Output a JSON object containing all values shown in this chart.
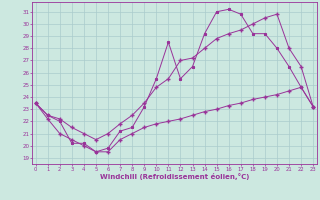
{
  "xlabel": "Windchill (Refroidissement éolien,°C)",
  "bg_color": "#cce8e0",
  "line_color": "#993399",
  "grid_color": "#aacccc",
  "x_ticks": [
    0,
    1,
    2,
    3,
    4,
    5,
    6,
    7,
    8,
    9,
    10,
    11,
    12,
    13,
    14,
    15,
    16,
    17,
    18,
    19,
    20,
    21,
    22,
    23
  ],
  "y_ticks": [
    19,
    20,
    21,
    22,
    23,
    24,
    25,
    26,
    27,
    28,
    29,
    30,
    31
  ],
  "xlim": [
    -0.3,
    23.3
  ],
  "ylim": [
    18.5,
    31.8
  ],
  "line1_x": [
    0,
    1,
    2,
    3,
    4,
    5,
    6,
    7,
    8,
    9,
    10,
    11,
    12,
    13,
    14,
    15,
    16,
    17,
    18,
    19,
    20,
    21,
    22,
    23
  ],
  "line1_y": [
    23.5,
    22.5,
    22.0,
    20.2,
    20.2,
    19.5,
    19.8,
    21.2,
    21.5,
    23.2,
    25.5,
    28.5,
    25.5,
    26.5,
    29.2,
    31.0,
    31.2,
    30.8,
    29.2,
    29.2,
    28.0,
    26.5,
    24.8,
    23.2
  ],
  "line2_x": [
    0,
    1,
    2,
    3,
    4,
    5,
    6,
    7,
    8,
    9,
    10,
    11,
    12,
    13,
    14,
    15,
    16,
    17,
    18,
    19,
    20,
    21,
    22,
    23
  ],
  "line2_y": [
    23.5,
    22.5,
    22.2,
    21.5,
    21.0,
    20.5,
    21.0,
    21.8,
    22.5,
    23.5,
    24.8,
    25.5,
    27.0,
    27.2,
    28.0,
    28.8,
    29.2,
    29.5,
    30.0,
    30.5,
    30.8,
    28.0,
    26.5,
    23.2
  ],
  "line3_x": [
    0,
    1,
    2,
    3,
    4,
    5,
    6,
    7,
    8,
    9,
    10,
    11,
    12,
    13,
    14,
    15,
    16,
    17,
    18,
    19,
    20,
    21,
    22,
    23
  ],
  "line3_y": [
    23.5,
    22.2,
    21.0,
    20.5,
    20.0,
    19.5,
    19.5,
    20.5,
    21.0,
    21.5,
    21.8,
    22.0,
    22.2,
    22.5,
    22.8,
    23.0,
    23.3,
    23.5,
    23.8,
    24.0,
    24.2,
    24.5,
    24.8,
    23.2
  ]
}
